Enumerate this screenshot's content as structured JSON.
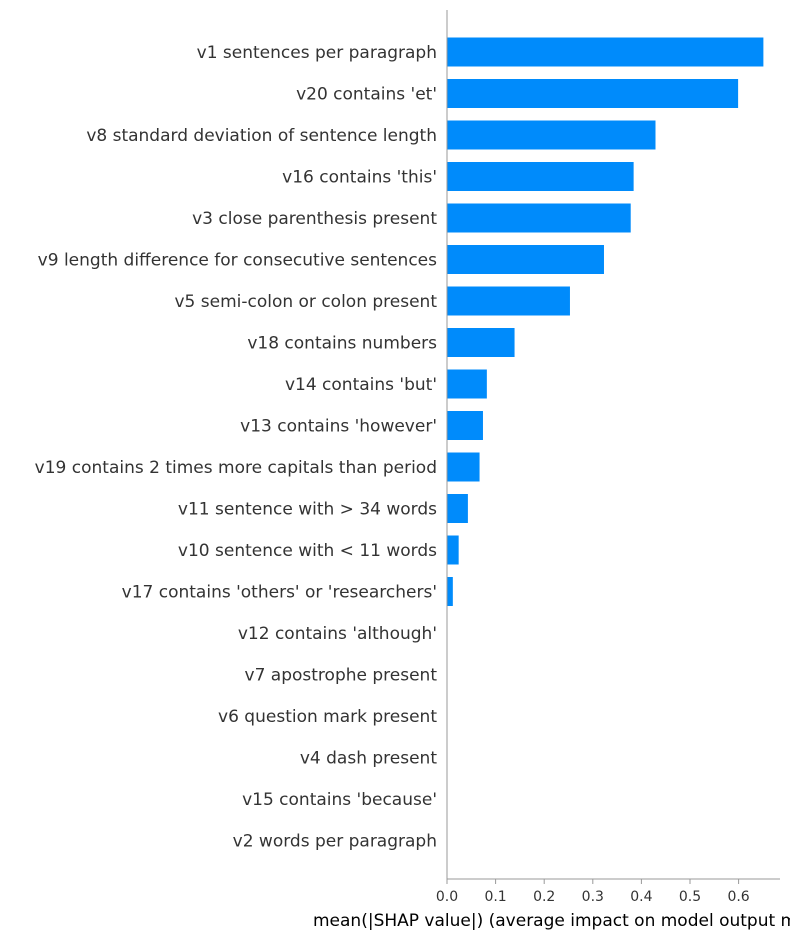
{
  "chart_data": {
    "type": "bar",
    "orientation": "horizontal",
    "title": "",
    "xlabel": "mean(|SHAP value|) (average impact on model output magnitude)",
    "ylabel": "",
    "xlim": [
      0,
      0.68
    ],
    "xticks": [
      "0.0",
      "0.1",
      "0.2",
      "0.3",
      "0.4",
      "0.5",
      "0.6"
    ],
    "grid": false,
    "legend": "none",
    "bar_color": "#008bfb",
    "categories": [
      "v1 sentences per paragraph",
      "v20 contains 'et'",
      "v8 standard deviation of sentence length",
      "v16 contains 'this'",
      "v3 close parenthesis present",
      "v9 length difference for consecutive sentences",
      "v5 semi-colon or colon present",
      "v18 contains numbers",
      "v14 contains 'but'",
      "v13 contains 'however'",
      "v19 contains 2 times more capitals than period",
      "v11 sentence with > 34 words",
      "v10 sentence with < 11 words",
      "v17 contains 'others' or 'researchers'",
      "v12 contains 'although'",
      "v7 apostrophe present",
      "v6 question mark present",
      "v4 dash present",
      "v15 contains 'because'",
      "v2 words per paragraph"
    ],
    "values": [
      0.651,
      0.599,
      0.429,
      0.384,
      0.378,
      0.323,
      0.253,
      0.139,
      0.082,
      0.074,
      0.067,
      0.043,
      0.024,
      0.012,
      0,
      0,
      0,
      0,
      0,
      0
    ]
  }
}
